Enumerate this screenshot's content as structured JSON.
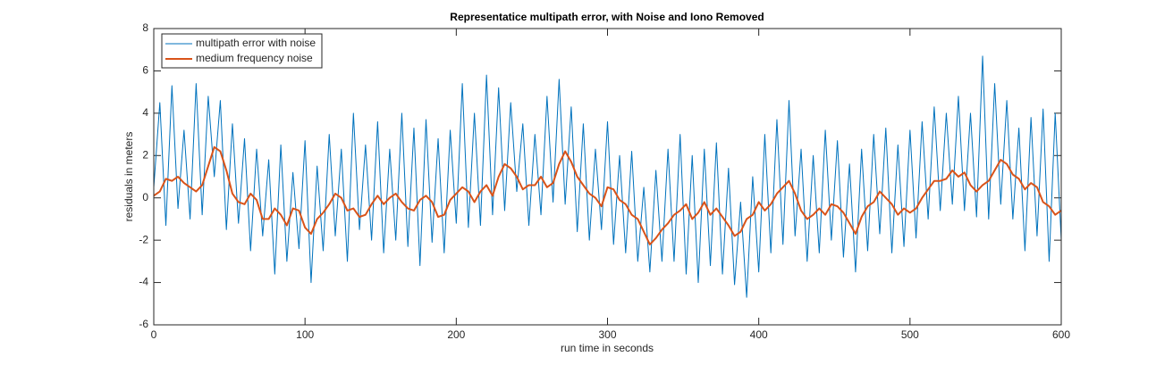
{
  "chart_data": {
    "type": "line",
    "title": "Representatice multipath error, with Noise and Iono Removed",
    "x_label": "run time in seconds",
    "y_label": "residuals in meters",
    "xlim": [
      0,
      600
    ],
    "xticks": [
      0,
      100,
      200,
      300,
      400,
      500,
      600
    ],
    "ylim": [
      -6,
      8
    ],
    "yticks": [
      -6,
      -4,
      -2,
      0,
      2,
      4,
      6,
      8
    ],
    "legend": "upper-left",
    "x": [
      0,
      4,
      8,
      12,
      16,
      20,
      24,
      28,
      32,
      36,
      40,
      44,
      48,
      52,
      56,
      60,
      64,
      68,
      72,
      76,
      80,
      84,
      88,
      92,
      96,
      100,
      104,
      108,
      112,
      116,
      120,
      124,
      128,
      132,
      136,
      140,
      144,
      148,
      152,
      156,
      160,
      164,
      168,
      172,
      176,
      180,
      184,
      188,
      192,
      196,
      200,
      204,
      208,
      212,
      216,
      220,
      224,
      228,
      232,
      236,
      240,
      244,
      248,
      252,
      256,
      260,
      264,
      268,
      272,
      276,
      280,
      284,
      288,
      292,
      296,
      300,
      304,
      308,
      312,
      316,
      320,
      324,
      328,
      332,
      336,
      340,
      344,
      348,
      352,
      356,
      360,
      364,
      368,
      372,
      376,
      380,
      384,
      388,
      392,
      396,
      400,
      404,
      408,
      412,
      416,
      420,
      424,
      428,
      432,
      436,
      440,
      444,
      448,
      452,
      456,
      460,
      464,
      468,
      472,
      476,
      480,
      484,
      488,
      492,
      496,
      500,
      504,
      508,
      512,
      516,
      520,
      524,
      528,
      532,
      536,
      540,
      544,
      548,
      552,
      556,
      560,
      564,
      568,
      572,
      576,
      580,
      584,
      588,
      592,
      596,
      600
    ],
    "series": [
      {
        "name": "multipath error with noise",
        "color": "#0072bd",
        "width": 1,
        "values": [
          0.5,
          4.5,
          -1.3,
          5.3,
          -0.5,
          3.2,
          -1.0,
          5.4,
          -0.8,
          4.8,
          1.0,
          4.6,
          -1.5,
          3.5,
          -1.2,
          2.8,
          -2.5,
          2.3,
          -1.8,
          1.8,
          -3.6,
          2.5,
          -3.0,
          1.2,
          -2.4,
          2.7,
          -4.0,
          1.5,
          -2.5,
          3.0,
          -1.8,
          2.3,
          -3.0,
          4.0,
          -1.5,
          2.5,
          -2.0,
          3.6,
          -2.6,
          2.3,
          -2.0,
          4.0,
          -2.3,
          3.3,
          -3.2,
          3.7,
          -2.1,
          2.8,
          -2.6,
          3.2,
          -1.2,
          5.4,
          -1.4,
          4.0,
          -1.3,
          5.8,
          -0.8,
          5.2,
          -0.6,
          4.5,
          0.3,
          3.5,
          -1.3,
          3.0,
          -0.8,
          4.8,
          -0.2,
          5.6,
          -0.3,
          4.3,
          -1.6,
          3.5,
          -2.0,
          2.3,
          -1.5,
          3.6,
          -2.2,
          2.0,
          -2.6,
          2.2,
          -3.0,
          0.5,
          -3.5,
          1.3,
          -3.0,
          2.3,
          -3.0,
          3.0,
          -3.6,
          2.0,
          -4.0,
          2.3,
          -3.2,
          2.6,
          -3.6,
          1.4,
          -4.1,
          -0.2,
          -4.7,
          1.0,
          -3.5,
          3.0,
          -2.6,
          3.7,
          -2.2,
          4.6,
          -1.8,
          2.3,
          -3.0,
          2.0,
          -2.6,
          3.2,
          -2.0,
          2.7,
          -2.8,
          1.6,
          -3.5,
          2.3,
          -2.5,
          3.0,
          -1.7,
          3.3,
          -2.6,
          2.5,
          -2.3,
          3.2,
          -1.9,
          3.6,
          -1.0,
          4.3,
          -0.6,
          4.0,
          -0.3,
          4.8,
          -0.6,
          4.0,
          -0.9,
          6.7,
          -1.0,
          5.4,
          -0.3,
          4.6,
          -1.0,
          3.3,
          -2.5,
          3.8,
          -1.8,
          4.2,
          -3.0,
          4.0,
          -2.0
        ]
      },
      {
        "name": "medium frequency noise",
        "color": "#d95319",
        "width": 2,
        "values": [
          0.1,
          0.3,
          0.9,
          0.8,
          1.0,
          0.7,
          0.5,
          0.3,
          0.6,
          1.5,
          2.4,
          2.2,
          1.3,
          0.2,
          -0.2,
          -0.3,
          0.2,
          -0.1,
          -1.0,
          -1.0,
          -0.5,
          -0.8,
          -1.3,
          -0.5,
          -0.6,
          -1.4,
          -1.7,
          -1.0,
          -0.7,
          -0.3,
          0.2,
          0.0,
          -0.6,
          -0.5,
          -0.9,
          -0.8,
          -0.3,
          0.1,
          -0.3,
          0.0,
          0.2,
          -0.2,
          -0.5,
          -0.6,
          -0.1,
          0.1,
          -0.2,
          -0.9,
          -0.8,
          -0.1,
          0.2,
          0.5,
          0.3,
          -0.2,
          0.3,
          0.6,
          0.1,
          1.0,
          1.6,
          1.4,
          1.0,
          0.4,
          0.6,
          0.6,
          1.0,
          0.5,
          0.7,
          1.6,
          2.2,
          1.7,
          1.0,
          0.6,
          0.2,
          0.0,
          -0.4,
          0.5,
          0.4,
          -0.1,
          -0.3,
          -0.8,
          -1.0,
          -1.6,
          -2.2,
          -1.9,
          -1.5,
          -1.2,
          -0.8,
          -0.6,
          -0.3,
          -1.0,
          -0.7,
          -0.2,
          -0.8,
          -0.5,
          -0.9,
          -1.3,
          -1.8,
          -1.6,
          -1.0,
          -0.8,
          -0.2,
          -0.6,
          -0.3,
          0.2,
          0.5,
          0.8,
          0.2,
          -0.6,
          -1.0,
          -0.8,
          -0.5,
          -0.8,
          -0.3,
          -0.4,
          -0.7,
          -1.2,
          -1.7,
          -0.9,
          -0.4,
          -0.2,
          0.3,
          0.0,
          -0.3,
          -0.8,
          -0.5,
          -0.7,
          -0.5,
          0.0,
          0.4,
          0.8,
          0.8,
          0.9,
          1.3,
          1.0,
          1.2,
          0.6,
          0.3,
          0.6,
          0.8,
          1.3,
          1.8,
          1.6,
          1.1,
          0.9,
          0.4,
          0.7,
          0.5,
          -0.2,
          -0.4,
          -0.8,
          -0.6
        ]
      }
    ]
  }
}
